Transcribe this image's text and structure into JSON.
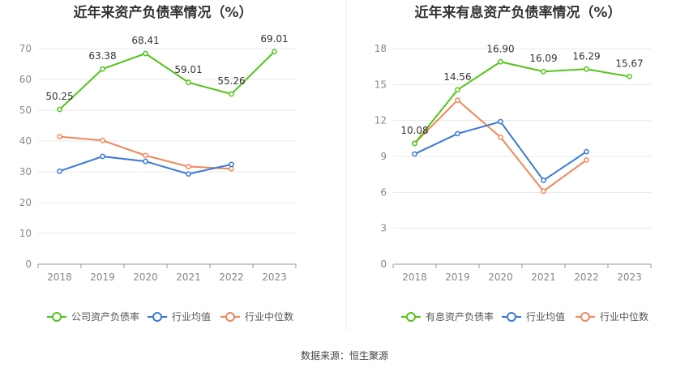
{
  "source_text": "数据来源：恒生聚源",
  "chart_data": [
    {
      "type": "line",
      "title": "近年来资产负债率情况（%）",
      "categories": [
        "2018",
        "2019",
        "2020",
        "2021",
        "2022",
        "2023"
      ],
      "ylim": [
        0,
        70
      ],
      "yticks": [
        0,
        10,
        20,
        30,
        40,
        50,
        60,
        70
      ],
      "grid": true,
      "legend_position": "bottom",
      "series": [
        {
          "name": "公司资产负债率",
          "color": "#52c41a",
          "values": [
            50.25,
            63.38,
            68.41,
            59.01,
            55.26,
            69.01
          ],
          "labels": [
            "50.25",
            "63.38",
            "68.41",
            "59.01",
            "55.26",
            "69.01"
          ]
        },
        {
          "name": "行业均值",
          "color": "#3a78d8",
          "values": [
            30.2,
            35.0,
            33.4,
            29.3,
            32.4,
            null
          ]
        },
        {
          "name": "行业中位数",
          "color": "#f0875a",
          "values": [
            41.4,
            40.2,
            35.3,
            31.7,
            31.0,
            null
          ]
        }
      ]
    },
    {
      "type": "line",
      "title": "近年来有息资产负债率情况（%）",
      "categories": [
        "2018",
        "2019",
        "2020",
        "2021",
        "2022",
        "2023"
      ],
      "ylim": [
        0,
        18
      ],
      "yticks": [
        0,
        3,
        6,
        9,
        12,
        15,
        18
      ],
      "grid": true,
      "legend_position": "bottom",
      "series": [
        {
          "name": "有息资产负债率",
          "color": "#52c41a",
          "values": [
            10.08,
            14.56,
            16.9,
            16.09,
            16.29,
            15.67
          ],
          "labels": [
            "10.08",
            "14.56",
            "16.90",
            "16.09",
            "16.29",
            "15.67"
          ]
        },
        {
          "name": "行业均值",
          "color": "#3a78d8",
          "values": [
            9.2,
            10.9,
            11.9,
            7.0,
            9.4,
            null
          ]
        },
        {
          "name": "行业中位数",
          "color": "#f0875a",
          "values": [
            10.1,
            13.7,
            10.6,
            6.1,
            8.7,
            null
          ]
        }
      ]
    }
  ]
}
